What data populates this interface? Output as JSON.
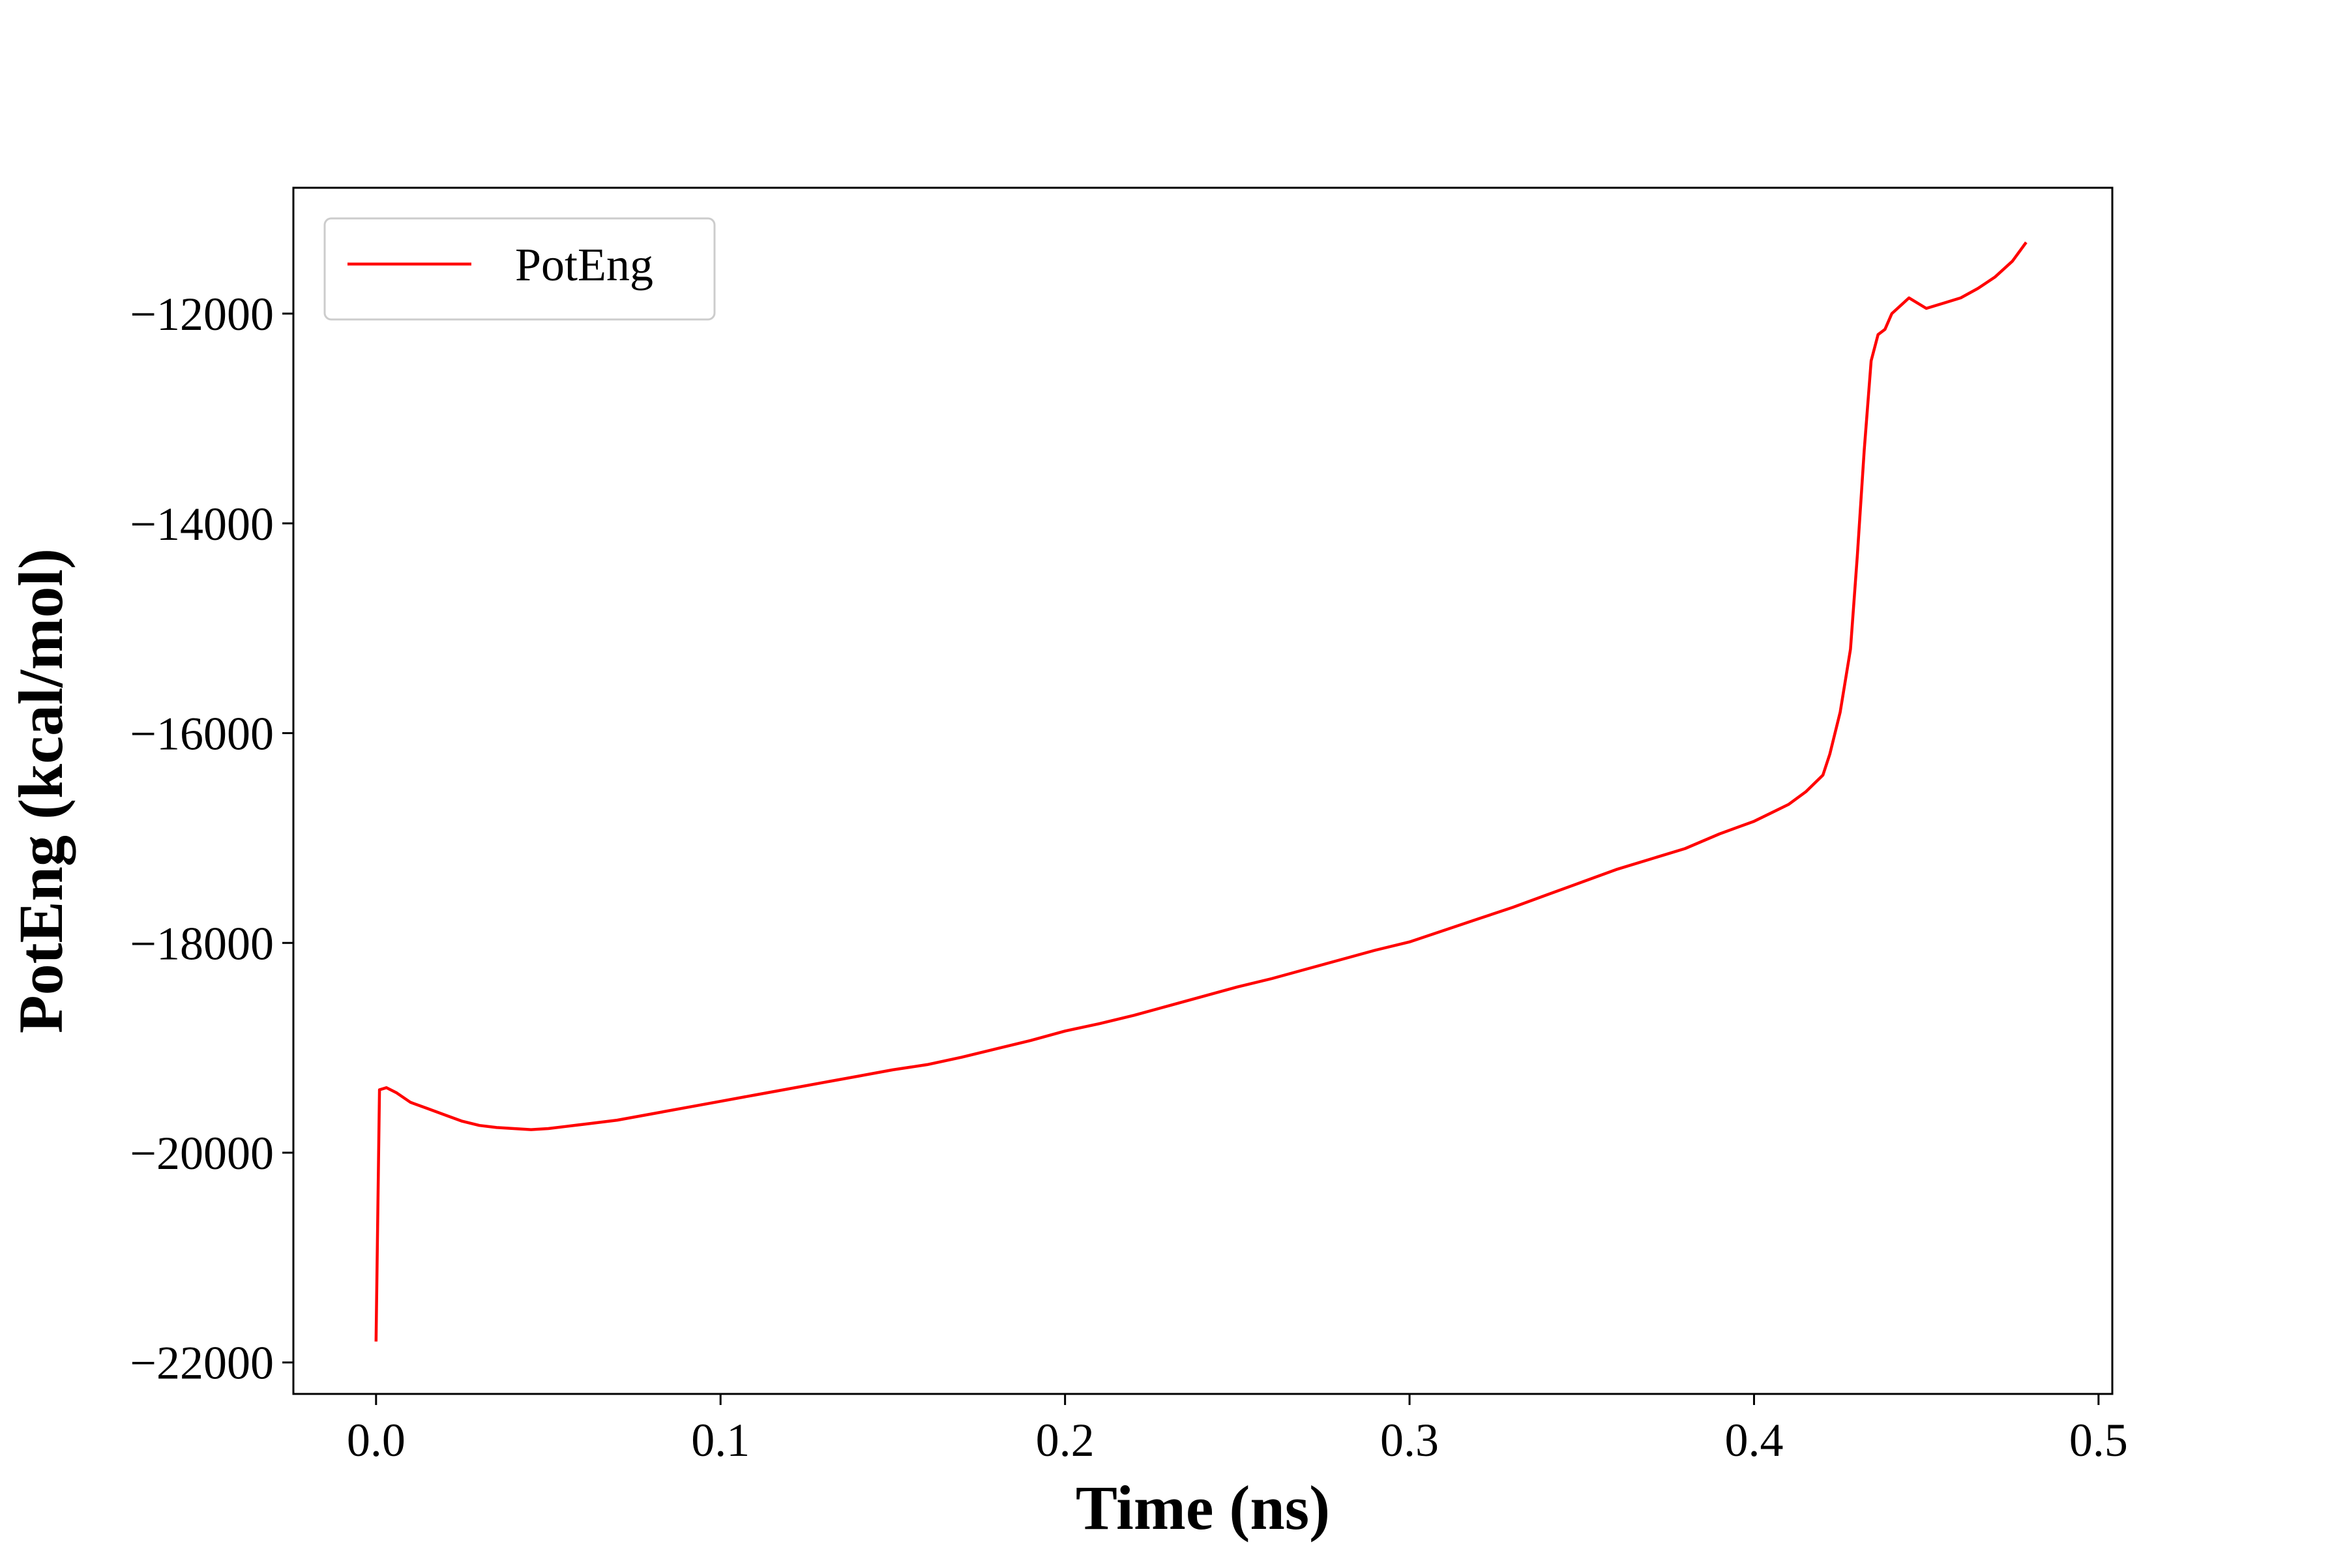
{
  "chart_data": {
    "type": "line",
    "title": "",
    "xlabel": "Time (ns)",
    "ylabel": "PotEng (kcal/mol)",
    "xlim": [
      -0.024,
      0.504
    ],
    "ylim": [
      -22300,
      -10800
    ],
    "xticks": [
      0.0,
      0.1,
      0.2,
      0.3,
      0.4,
      0.5
    ],
    "xtick_labels": [
      "0.0",
      "0.1",
      "0.2",
      "0.3",
      "0.4",
      "0.5"
    ],
    "yticks": [
      -22000,
      -20000,
      -18000,
      -16000,
      -14000,
      -12000
    ],
    "ytick_labels": [
      "−22000",
      "−20000",
      "−18000",
      "−16000",
      "−14000",
      "−12000"
    ],
    "grid": false,
    "legend": {
      "position": "top-left"
    },
    "series": [
      {
        "name": "PotEng",
        "color": "#ff0000",
        "points": [
          [
            0.0,
            -21800
          ],
          [
            0.001,
            -19400
          ],
          [
            0.003,
            -19380
          ],
          [
            0.006,
            -19430
          ],
          [
            0.01,
            -19520
          ],
          [
            0.015,
            -19580
          ],
          [
            0.02,
            -19640
          ],
          [
            0.025,
            -19700
          ],
          [
            0.03,
            -19740
          ],
          [
            0.035,
            -19760
          ],
          [
            0.04,
            -19770
          ],
          [
            0.045,
            -19780
          ],
          [
            0.05,
            -19770
          ],
          [
            0.055,
            -19750
          ],
          [
            0.06,
            -19730
          ],
          [
            0.07,
            -19690
          ],
          [
            0.08,
            -19630
          ],
          [
            0.09,
            -19570
          ],
          [
            0.1,
            -19510
          ],
          [
            0.11,
            -19450
          ],
          [
            0.12,
            -19390
          ],
          [
            0.13,
            -19330
          ],
          [
            0.14,
            -19270
          ],
          [
            0.15,
            -19210
          ],
          [
            0.16,
            -19160
          ],
          [
            0.17,
            -19090
          ],
          [
            0.18,
            -19010
          ],
          [
            0.19,
            -18930
          ],
          [
            0.2,
            -18840
          ],
          [
            0.21,
            -18770
          ],
          [
            0.22,
            -18690
          ],
          [
            0.23,
            -18600
          ],
          [
            0.24,
            -18510
          ],
          [
            0.25,
            -18420
          ],
          [
            0.26,
            -18340
          ],
          [
            0.27,
            -18250
          ],
          [
            0.28,
            -18160
          ],
          [
            0.29,
            -18070
          ],
          [
            0.3,
            -17990
          ],
          [
            0.31,
            -17880
          ],
          [
            0.32,
            -17770
          ],
          [
            0.33,
            -17660
          ],
          [
            0.34,
            -17540
          ],
          [
            0.35,
            -17420
          ],
          [
            0.36,
            -17300
          ],
          [
            0.37,
            -17200
          ],
          [
            0.38,
            -17100
          ],
          [
            0.39,
            -16960
          ],
          [
            0.4,
            -16840
          ],
          [
            0.405,
            -16760
          ],
          [
            0.41,
            -16680
          ],
          [
            0.415,
            -16560
          ],
          [
            0.42,
            -16400
          ],
          [
            0.422,
            -16200
          ],
          [
            0.425,
            -15800
          ],
          [
            0.428,
            -15200
          ],
          [
            0.43,
            -14300
          ],
          [
            0.432,
            -13300
          ],
          [
            0.434,
            -12450
          ],
          [
            0.436,
            -12200
          ],
          [
            0.438,
            -12150
          ],
          [
            0.44,
            -12000
          ],
          [
            0.445,
            -11850
          ],
          [
            0.45,
            -11950
          ],
          [
            0.455,
            -11900
          ],
          [
            0.46,
            -11850
          ],
          [
            0.465,
            -11760
          ],
          [
            0.47,
            -11650
          ],
          [
            0.475,
            -11500
          ],
          [
            0.479,
            -11320
          ]
        ]
      }
    ]
  }
}
